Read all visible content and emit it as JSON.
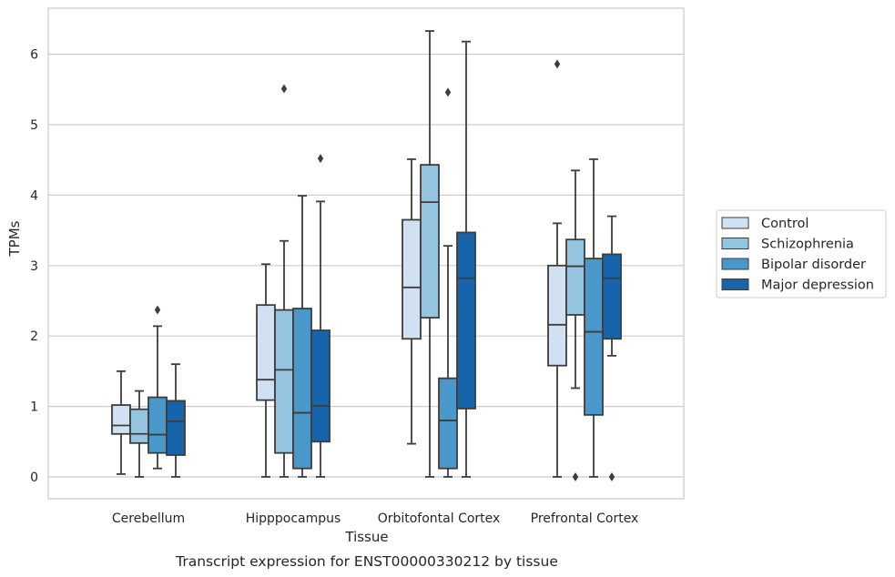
{
  "chart_data": {
    "type": "box",
    "caption": "Transcript expression for ENST00000330212 by tissue",
    "xlabel": "Tissue",
    "ylabel": "TPMs",
    "ylim": [
      -0.3,
      6.65
    ],
    "yticks": [
      "0",
      "1",
      "2",
      "3",
      "4",
      "5",
      "6"
    ],
    "grid": "horizontal",
    "legend_position": "right",
    "categories": [
      "Cerebellum",
      "Hipppocampus",
      "Orbitofontal Cortex",
      "Prefrontal Cortex"
    ],
    "series": [
      {
        "name": "Control",
        "color": "#d0e1f2",
        "boxes": [
          {
            "whislo": 0.04,
            "q1": 0.61,
            "med": 0.73,
            "q3": 1.02,
            "whishi": 1.5,
            "fliers": []
          },
          {
            "whislo": 0.0,
            "q1": 1.09,
            "med": 1.38,
            "q3": 2.44,
            "whishi": 3.02,
            "fliers": []
          },
          {
            "whislo": 0.47,
            "q1": 1.96,
            "med": 2.69,
            "q3": 3.65,
            "whishi": 4.51,
            "fliers": []
          },
          {
            "whislo": 0.0,
            "q1": 1.58,
            "med": 2.16,
            "q3": 3.0,
            "whishi": 3.6,
            "fliers": [
              5.86
            ]
          }
        ]
      },
      {
        "name": "Schizophrenia",
        "color": "#94c4df",
        "boxes": [
          {
            "whislo": 0.0,
            "q1": 0.48,
            "med": 0.61,
            "q3": 0.96,
            "whishi": 1.22,
            "fliers": []
          },
          {
            "whislo": 0.0,
            "q1": 0.34,
            "med": 1.52,
            "q3": 2.37,
            "whishi": 3.35,
            "fliers": [
              5.51
            ]
          },
          {
            "whislo": 0.0,
            "q1": 2.26,
            "med": 3.9,
            "q3": 4.43,
            "whishi": 6.33,
            "fliers": []
          },
          {
            "whislo": 1.26,
            "q1": 2.3,
            "med": 2.99,
            "q3": 3.37,
            "whishi": 4.35,
            "fliers": [
              0.0
            ]
          }
        ]
      },
      {
        "name": "Bipolar disorder",
        "color": "#4a98c9",
        "boxes": [
          {
            "whislo": 0.12,
            "q1": 0.34,
            "med": 0.6,
            "q3": 1.13,
            "whishi": 2.14,
            "fliers": [
              2.37
            ]
          },
          {
            "whislo": 0.0,
            "q1": 0.12,
            "med": 0.91,
            "q3": 2.39,
            "whishi": 3.99,
            "fliers": []
          },
          {
            "whislo": 0.0,
            "q1": 0.12,
            "med": 0.8,
            "q3": 1.4,
            "whishi": 3.28,
            "fliers": [
              5.46
            ]
          },
          {
            "whislo": 0.0,
            "q1": 0.88,
            "med": 2.06,
            "q3": 3.1,
            "whishi": 4.51,
            "fliers": []
          }
        ]
      },
      {
        "name": "Major depression",
        "color": "#1764ab",
        "boxes": [
          {
            "whislo": 0.0,
            "q1": 0.31,
            "med": 0.79,
            "q3": 1.08,
            "whishi": 1.6,
            "fliers": []
          },
          {
            "whislo": 0.0,
            "q1": 0.5,
            "med": 1.01,
            "q3": 2.08,
            "whishi": 3.91,
            "fliers": [
              4.52
            ]
          },
          {
            "whislo": 0.0,
            "q1": 0.97,
            "med": 2.82,
            "q3": 3.47,
            "whishi": 6.18,
            "fliers": []
          },
          {
            "whislo": 1.72,
            "q1": 1.96,
            "med": 2.82,
            "q3": 3.16,
            "whishi": 3.7,
            "fliers": [
              0.0
            ]
          }
        ]
      }
    ]
  }
}
